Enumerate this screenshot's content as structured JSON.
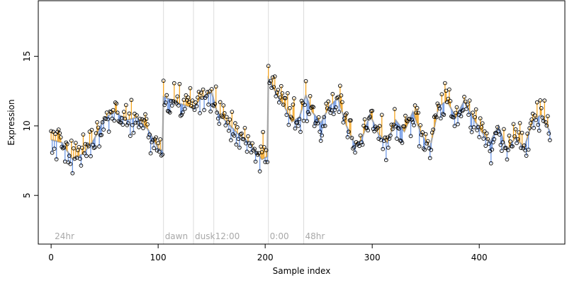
{
  "chart_data": {
    "type": "scatter",
    "xlabel": "Sample index",
    "ylabel": "Expression",
    "xlim": [
      -12,
      480
    ],
    "ylim": [
      1.5,
      19
    ],
    "xticks": [
      0,
      100,
      200,
      300,
      400
    ],
    "yticks": [
      5,
      10,
      15
    ],
    "colors": {
      "fit": "#a6a6a6",
      "above": "#f5a623",
      "below": "#6f99e6",
      "marker_line": "#dcdcdc",
      "marker_text": "#a8a8a8",
      "point_stroke": "#000000"
    },
    "markers": [
      {
        "x": 2,
        "label": "24hr"
      },
      {
        "x": 105,
        "label": "dawn"
      },
      {
        "x": 133,
        "label": "dusk"
      },
      {
        "x": 152,
        "label": "12:00"
      },
      {
        "x": 203,
        "label": "0:00"
      },
      {
        "x": 236,
        "label": "48hr"
      }
    ],
    "fit_knots": [
      [
        0,
        9.0
      ],
      [
        10,
        8.8
      ],
      [
        20,
        7.6
      ],
      [
        30,
        8.0
      ],
      [
        40,
        9.0
      ],
      [
        50,
        10.6
      ],
      [
        60,
        11.0
      ],
      [
        70,
        10.4
      ],
      [
        80,
        10.6
      ],
      [
        90,
        9.8
      ],
      [
        100,
        8.4
      ],
      [
        104,
        8.2
      ],
      [
        105,
        12.1
      ],
      [
        120,
        11.6
      ],
      [
        133,
        11.3
      ],
      [
        140,
        12.0
      ],
      [
        150,
        12.4
      ],
      [
        155,
        11.0
      ],
      [
        165,
        10.2
      ],
      [
        175,
        9.4
      ],
      [
        185,
        8.8
      ],
      [
        193,
        8.0
      ],
      [
        197,
        7.6
      ],
      [
        202,
        7.8
      ],
      [
        203,
        13.4
      ],
      [
        210,
        12.4
      ],
      [
        218,
        11.4
      ],
      [
        225,
        10.3
      ],
      [
        232,
        10.6
      ],
      [
        238,
        12.2
      ],
      [
        244,
        11.0
      ],
      [
        252,
        10.2
      ],
      [
        260,
        11.4
      ],
      [
        268,
        12.0
      ],
      [
        276,
        10.0
      ],
      [
        284,
        8.6
      ],
      [
        290,
        9.0
      ],
      [
        298,
        10.8
      ],
      [
        306,
        9.4
      ],
      [
        314,
        8.8
      ],
      [
        322,
        10.4
      ],
      [
        330,
        9.6
      ],
      [
        338,
        11.0
      ],
      [
        346,
        9.4
      ],
      [
        354,
        8.4
      ],
      [
        362,
        11.4
      ],
      [
        370,
        11.8
      ],
      [
        378,
        10.6
      ],
      [
        386,
        11.8
      ],
      [
        394,
        10.6
      ],
      [
        402,
        9.6
      ],
      [
        410,
        8.8
      ],
      [
        418,
        10.0
      ],
      [
        426,
        8.2
      ],
      [
        434,
        9.2
      ],
      [
        442,
        8.4
      ],
      [
        450,
        10.4
      ],
      [
        458,
        10.8
      ],
      [
        466,
        9.6
      ]
    ],
    "noise_seed": 20240611
  }
}
